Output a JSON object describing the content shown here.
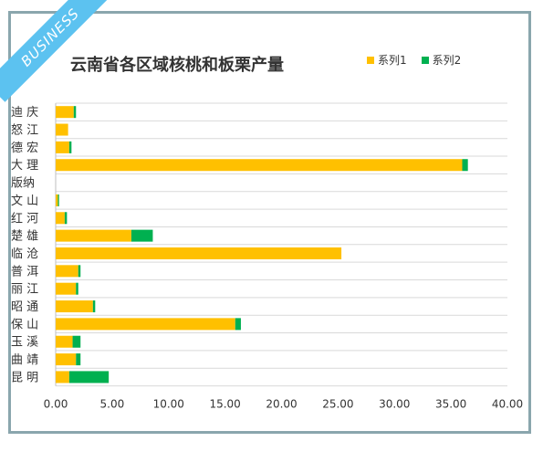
{
  "badge": {
    "text": "BUSINESS"
  },
  "colors": {
    "series1": "#ffc000",
    "series2": "#00b050",
    "grid": "#d9d9d9",
    "frame": "#8aa6ad",
    "ribbon": "#5cc2f0"
  },
  "chart_data": {
    "type": "bar",
    "orientation": "horizontal",
    "stacked": true,
    "title": "云南省各区域核桃和板栗产量",
    "legend_position": "top-right",
    "categories": [
      "迪 庆",
      "怒 江",
      "德 宏",
      "大 理",
      "版纳",
      "文 山",
      "红 河",
      "楚 雄",
      "临 沧",
      "普 洱",
      "丽 江",
      "昭 通",
      "保 山",
      "玉 溪",
      "曲 靖",
      "昆 明"
    ],
    "series": [
      {
        "name": "系列1",
        "values": [
          1.6,
          1.1,
          1.2,
          36.0,
          0.0,
          0.2,
          0.8,
          6.7,
          25.3,
          2.0,
          1.8,
          3.3,
          15.9,
          1.5,
          1.8,
          1.2
        ]
      },
      {
        "name": "系列2",
        "values": [
          0.2,
          0.0,
          0.2,
          0.5,
          0.0,
          0.1,
          0.2,
          1.9,
          0.0,
          0.2,
          0.2,
          0.2,
          0.5,
          0.7,
          0.4,
          3.5
        ]
      }
    ],
    "xlim": [
      0,
      40
    ],
    "xticks": [
      "0.00",
      "5.00",
      "10.00",
      "15.00",
      "20.00",
      "25.00",
      "30.00",
      "35.00",
      "40.00"
    ],
    "grid": true
  }
}
